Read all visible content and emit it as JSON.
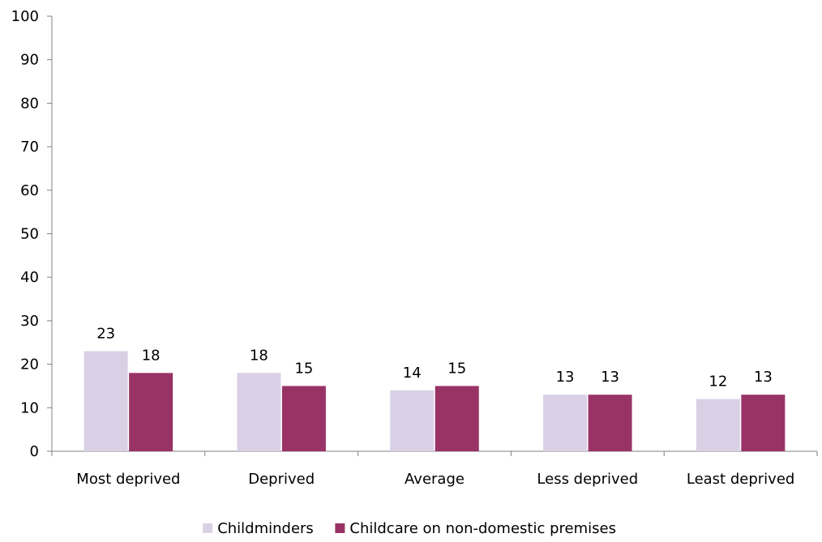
{
  "chart_data": {
    "type": "bar",
    "title": "",
    "xlabel": "",
    "ylabel": "",
    "categories": [
      "Most deprived",
      "Deprived",
      "Average",
      "Less deprived",
      "Least deprived"
    ],
    "series": [
      {
        "name": "Childminders",
        "values": [
          23,
          18,
          14,
          13,
          12
        ],
        "color": "#d9d0e6"
      },
      {
        "name": "Childcare on non-domestic premises",
        "values": [
          18,
          15,
          15,
          13,
          13
        ],
        "color": "#993366"
      }
    ],
    "ylim": [
      0,
      100
    ],
    "yticks": [
      0,
      10,
      20,
      30,
      40,
      50,
      60,
      70,
      80,
      90,
      100
    ],
    "grid": false,
    "data_labels": true,
    "legend": "bottom-center"
  }
}
